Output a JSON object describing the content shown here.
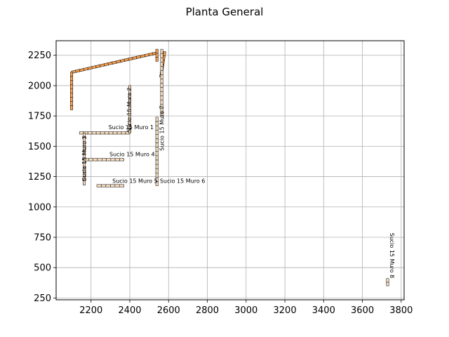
{
  "chart_data": {
    "type": "scatter",
    "title": "Planta General",
    "xlabel": "",
    "ylabel": "",
    "xlim": [
      2020,
      3815
    ],
    "ylim": [
      235,
      2370
    ],
    "xticks": [
      2200,
      2400,
      2600,
      2800,
      3000,
      3200,
      3400,
      3600,
      3800
    ],
    "yticks": [
      250,
      500,
      750,
      1000,
      1250,
      1500,
      1750,
      2000,
      2250
    ],
    "grid": true,
    "colors": {
      "block_light": "#f6dcc0",
      "block_orange": "#f5a050",
      "block_edge": "#000000",
      "grid": "#b0b0b0"
    },
    "walls": [
      {
        "name": "Sucio 15 Muro 1",
        "x": [
          2140,
          2400
        ],
        "y": [
          1610,
          1610
        ],
        "label_x": 2290,
        "label_y": 1640,
        "label_angle": 0
      },
      {
        "name": "Sucio 15 Muro 2",
        "x": [
          2400,
          2400
        ],
        "y": [
          1610,
          2000
        ],
        "label_x": 2408,
        "label_y": 1800,
        "label_angle": -90
      },
      {
        "name": "Sucio 15 Muro 3",
        "x": [
          2165,
          2165
        ],
        "y": [
          1180,
          1610
        ],
        "label_x": 2175,
        "label_y": 1400,
        "label_angle": -90
      },
      {
        "name": "Sucio 15 Muro 4",
        "x": [
          2165,
          2370
        ],
        "y": [
          1390,
          1390
        ],
        "label_x": 2295,
        "label_y": 1418,
        "label_angle": 0
      },
      {
        "name": "Sucio 15 Muro 5",
        "x": [
          2230,
          2370
        ],
        "y": [
          1175,
          1175
        ],
        "label_x": 2310,
        "label_y": 1198,
        "label_angle": 0
      },
      {
        "name": "Sucio 15 Muro 6",
        "x": [
          2540,
          2540
        ],
        "y": [
          1175,
          1740
        ],
        "label_x": 2555,
        "label_y": 1198,
        "label_angle": 0
      },
      {
        "name": "Sucio 15 Muro 7",
        "x": [
          2565,
          2565
        ],
        "y": [
          1740,
          2300
        ],
        "label_x": 2575,
        "label_y": 1650,
        "label_angle": -90
      },
      {
        "name": "Sucio 15 Muro 8",
        "x": [
          3730,
          3730
        ],
        "y": [
          350,
          410
        ],
        "label_x": 3743,
        "label_y": 600,
        "label_angle": 90
      }
    ],
    "upper_segments": [
      {
        "x": [
          2100,
          2540
        ],
        "y": [
          2110,
          2270
        ],
        "color": "orange"
      },
      {
        "x": [
          2100,
          2100
        ],
        "y": [
          1800,
          2110
        ],
        "color": "orange"
      },
      {
        "x": [
          2540,
          2540
        ],
        "y": [
          2200,
          2300
        ],
        "color": "orange"
      },
      {
        "x": [
          2560,
          2580
        ],
        "y": [
          2070,
          2280
        ],
        "color": "orange"
      }
    ]
  }
}
